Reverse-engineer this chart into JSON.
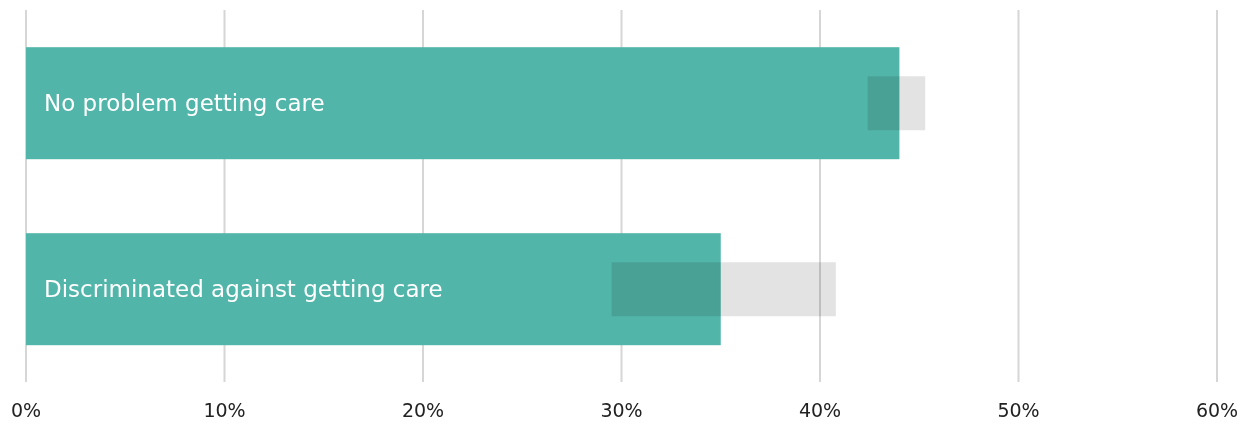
{
  "chart_data": {
    "type": "bar",
    "orientation": "horizontal",
    "categories": [
      "No problem getting care",
      "Discriminated against getting care"
    ],
    "values": [
      44,
      35
    ],
    "color": "#52b5a9",
    "errors": [
      [
        42.4,
        45.3
      ],
      [
        29.5,
        40.8
      ]
    ],
    "xlim": [
      0,
      60
    ],
    "xticks": [
      {
        "value": 0,
        "label": "0%"
      },
      {
        "value": 10,
        "label": "10%"
      },
      {
        "value": 20,
        "label": "20%"
      },
      {
        "value": 30,
        "label": "30%"
      },
      {
        "value": 40,
        "label": "40%"
      },
      {
        "value": 50,
        "label": "50%"
      },
      {
        "value": 60,
        "label": "60%"
      }
    ],
    "grid": "x"
  }
}
